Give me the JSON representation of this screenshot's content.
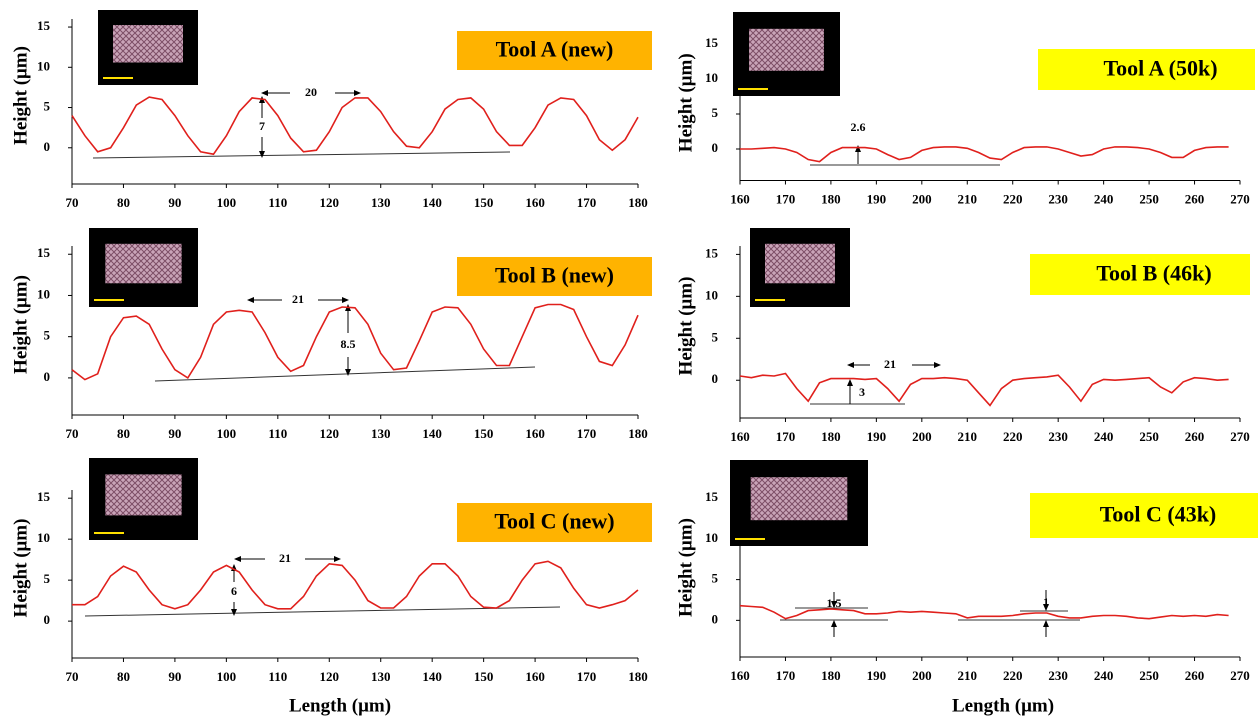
{
  "chart_data": [
    {
      "type": "line",
      "title": "Tool A (new)",
      "ylabel": "Height (μm)",
      "color": "#e0201c",
      "xlim": [
        70,
        180
      ],
      "ylim": [
        -4.5,
        16
      ],
      "xticks": [
        70,
        80,
        90,
        100,
        110,
        120,
        130,
        140,
        150,
        160,
        170,
        180
      ],
      "yticks": [
        0,
        5,
        10,
        15
      ],
      "annotations": [
        "20",
        "7"
      ],
      "x": [
        70,
        72.5,
        75,
        77.5,
        80,
        82.5,
        85,
        87.5,
        90,
        92.5,
        95,
        97.5,
        100,
        102.5,
        105,
        107.5,
        110,
        112.5,
        115,
        117.5,
        120,
        122.5,
        125,
        127.5,
        130,
        132.5,
        135,
        137.5,
        140,
        142.5,
        145,
        147.5,
        150,
        152.5,
        155,
        157.5,
        160,
        162.5,
        165,
        167.5,
        170,
        172.5,
        175,
        177.5,
        180
      ],
      "values": [
        4,
        1.5,
        -0.5,
        0,
        2.5,
        5.3,
        6.3,
        6,
        4,
        1.5,
        -0.5,
        -0.8,
        1.5,
        4.5,
        6.2,
        6,
        4,
        1.2,
        -0.5,
        -0.3,
        2,
        5,
        6.2,
        6.2,
        4.5,
        2,
        0.2,
        0,
        2,
        4.8,
        6,
        6.2,
        4.8,
        2,
        0.3,
        0.3,
        2.5,
        5.3,
        6.2,
        6,
        4,
        1,
        -0.3,
        1,
        3.8
      ]
    },
    {
      "type": "line",
      "title": "Tool A (50k)",
      "ylabel": "Height (μm)",
      "color": "#e0201c",
      "xlim": [
        160,
        270
      ],
      "ylim": [
        -4.5,
        16
      ],
      "xticks": [
        160,
        170,
        180,
        190,
        200,
        210,
        220,
        230,
        240,
        250,
        260,
        270
      ],
      "yticks": [
        0,
        5,
        10,
        15
      ],
      "annotations": [
        "2.6"
      ],
      "x": [
        160,
        162.5,
        165,
        167.5,
        170,
        172.5,
        175,
        177.5,
        180,
        182.5,
        185,
        187.5,
        190,
        192.5,
        195,
        197.5,
        200,
        202.5,
        205,
        207.5,
        210,
        212.5,
        215,
        217.5,
        220,
        222.5,
        225,
        227.5,
        230,
        232.5,
        235,
        237.5,
        240,
        242.5,
        245,
        247.5,
        250,
        252.5,
        255,
        257.5,
        260,
        262.5,
        265,
        267.5
      ],
      "values": [
        0,
        0,
        0.1,
        0.2,
        0,
        -0.5,
        -1.5,
        -1.8,
        -0.5,
        0.2,
        0.2,
        0.2,
        0,
        -0.8,
        -1.5,
        -1.2,
        -0.2,
        0.2,
        0.3,
        0.3,
        0.1,
        -0.5,
        -1.3,
        -1.5,
        -0.5,
        0.2,
        0.3,
        0.3,
        0,
        -0.5,
        -1,
        -0.8,
        0,
        0.3,
        0.3,
        0.2,
        0,
        -0.5,
        -1.2,
        -1.2,
        -0.2,
        0.2,
        0.3,
        0.3
      ]
    },
    {
      "type": "line",
      "title": "Tool B (new)",
      "ylabel": "Height (μm)",
      "color": "#e0201c",
      "xlim": [
        70,
        180
      ],
      "ylim": [
        -4.5,
        16
      ],
      "xticks": [
        70,
        80,
        90,
        100,
        110,
        120,
        130,
        140,
        150,
        160,
        170,
        180
      ],
      "yticks": [
        0,
        5,
        10,
        15
      ],
      "annotations": [
        "21",
        "8.5"
      ],
      "x": [
        70,
        72.5,
        75,
        77.5,
        80,
        82.5,
        85,
        87.5,
        90,
        92.5,
        95,
        97.5,
        100,
        102.5,
        105,
        107.5,
        110,
        112.5,
        115,
        117.5,
        120,
        122.5,
        125,
        127.5,
        130,
        132.5,
        135,
        137.5,
        140,
        142.5,
        145,
        147.5,
        150,
        152.5,
        155,
        157.5,
        160,
        162.5,
        165,
        167.5,
        170,
        172.5,
        175,
        177.5,
        180
      ],
      "values": [
        1,
        -0.2,
        0.5,
        5,
        7.3,
        7.5,
        6.5,
        3.5,
        1,
        0,
        2.5,
        6.5,
        8,
        8.2,
        8,
        5.5,
        2.5,
        0.8,
        1.5,
        5,
        8,
        8.6,
        8.5,
        6.5,
        3,
        1,
        1.2,
        4.5,
        8,
        8.6,
        8.5,
        6.5,
        3.5,
        1.5,
        1.5,
        5,
        8.5,
        8.9,
        8.9,
        8.3,
        5,
        2,
        1.5,
        4,
        7.6
      ]
    },
    {
      "type": "line",
      "title": "Tool B (46k)",
      "ylabel": "Height (μm)",
      "color": "#e0201c",
      "xlim": [
        160,
        270
      ],
      "ylim": [
        -4.5,
        16
      ],
      "xticks": [
        160,
        170,
        180,
        190,
        200,
        210,
        220,
        230,
        240,
        250,
        260,
        270
      ],
      "yticks": [
        0,
        5,
        10,
        15
      ],
      "annotations": [
        "21",
        "3"
      ],
      "x": [
        160,
        162.5,
        165,
        167.5,
        170,
        172.5,
        175,
        177.5,
        180,
        182.5,
        185,
        187.5,
        190,
        192.5,
        195,
        197.5,
        200,
        202.5,
        205,
        207.5,
        210,
        212.5,
        215,
        217.5,
        220,
        222.5,
        225,
        227.5,
        230,
        232.5,
        235,
        237.5,
        240,
        242.5,
        245,
        247.5,
        250,
        252.5,
        255,
        257.5,
        260,
        262.5,
        265,
        267.5
      ],
      "values": [
        0.5,
        0.3,
        0.6,
        0.5,
        0.8,
        -1,
        -2.5,
        -0.3,
        0.2,
        0.2,
        0.2,
        0.1,
        0.2,
        -1,
        -2.5,
        -0.5,
        0.2,
        0.2,
        0.3,
        0.2,
        0,
        -1.5,
        -3,
        -1,
        0,
        0.2,
        0.3,
        0.4,
        0.6,
        -0.8,
        -2.5,
        -0.5,
        0.1,
        0,
        0.1,
        0.2,
        0.3,
        -0.8,
        -1.5,
        -0.2,
        0.3,
        0.2,
        0,
        0.1
      ]
    },
    {
      "type": "line",
      "title": "Tool C (new)",
      "ylabel": "Height (μm)",
      "xlabel": "Length (μm)",
      "color": "#e0201c",
      "xlim": [
        70,
        180
      ],
      "ylim": [
        -4.5,
        16
      ],
      "xticks": [
        70,
        80,
        90,
        100,
        110,
        120,
        130,
        140,
        150,
        160,
        170,
        180
      ],
      "yticks": [
        0,
        5,
        10,
        15
      ],
      "annotations": [
        "21",
        "6"
      ],
      "x": [
        70,
        72.5,
        75,
        77.5,
        80,
        82.5,
        85,
        87.5,
        90,
        92.5,
        95,
        97.5,
        100,
        102.5,
        105,
        107.5,
        110,
        112.5,
        115,
        117.5,
        120,
        122.5,
        125,
        127.5,
        130,
        132.5,
        135,
        137.5,
        140,
        142.5,
        145,
        147.5,
        150,
        152.5,
        155,
        157.5,
        160,
        162.5,
        165,
        167.5,
        170,
        172.5,
        175,
        177.5,
        180
      ],
      "values": [
        2,
        2,
        3,
        5.5,
        6.7,
        6,
        3.8,
        2,
        1.5,
        2,
        3.8,
        6,
        6.8,
        6,
        3.8,
        2,
        1.5,
        1.5,
        3,
        5.5,
        7,
        6.8,
        5,
        2.5,
        1.6,
        1.6,
        3,
        5.5,
        7,
        7,
        5.5,
        3,
        1.7,
        1.6,
        2.5,
        5,
        7,
        7.3,
        6.5,
        4,
        2,
        1.6,
        2,
        2.5,
        3.8
      ]
    },
    {
      "type": "line",
      "title": "Tool C (43k)",
      "ylabel": "Height (μm)",
      "xlabel": "Length (μm)",
      "color": "#e0201c",
      "xlim": [
        160,
        270
      ],
      "ylim": [
        -4.5,
        16
      ],
      "xticks": [
        160,
        170,
        180,
        190,
        200,
        210,
        220,
        230,
        240,
        250,
        260,
        270
      ],
      "yticks": [
        0,
        5,
        10,
        15
      ],
      "annotations": [
        "1.5",
        "1"
      ],
      "x": [
        160,
        162.5,
        165,
        167.5,
        170,
        172.5,
        175,
        177.5,
        180,
        182.5,
        185,
        187.5,
        190,
        192.5,
        195,
        197.5,
        200,
        202.5,
        205,
        207.5,
        210,
        212.5,
        215,
        217.5,
        220,
        222.5,
        225,
        227.5,
        230,
        232.5,
        235,
        237.5,
        240,
        242.5,
        245,
        247.5,
        250,
        252.5,
        255,
        257.5,
        260,
        262.5,
        265,
        267.5
      ],
      "values": [
        1.8,
        1.7,
        1.6,
        1,
        0.2,
        0.6,
        1.2,
        1.3,
        1.4,
        1.3,
        1.2,
        0.8,
        0.8,
        0.9,
        1.1,
        1,
        1.1,
        1,
        0.9,
        0.8,
        0.3,
        0.5,
        0.5,
        0.5,
        0.6,
        0.8,
        0.9,
        0.9,
        0.5,
        0.3,
        0.3,
        0.5,
        0.6,
        0.6,
        0.5,
        0.3,
        0.2,
        0.4,
        0.6,
        0.5,
        0.6,
        0.5,
        0.7,
        0.6
      ]
    }
  ]
}
